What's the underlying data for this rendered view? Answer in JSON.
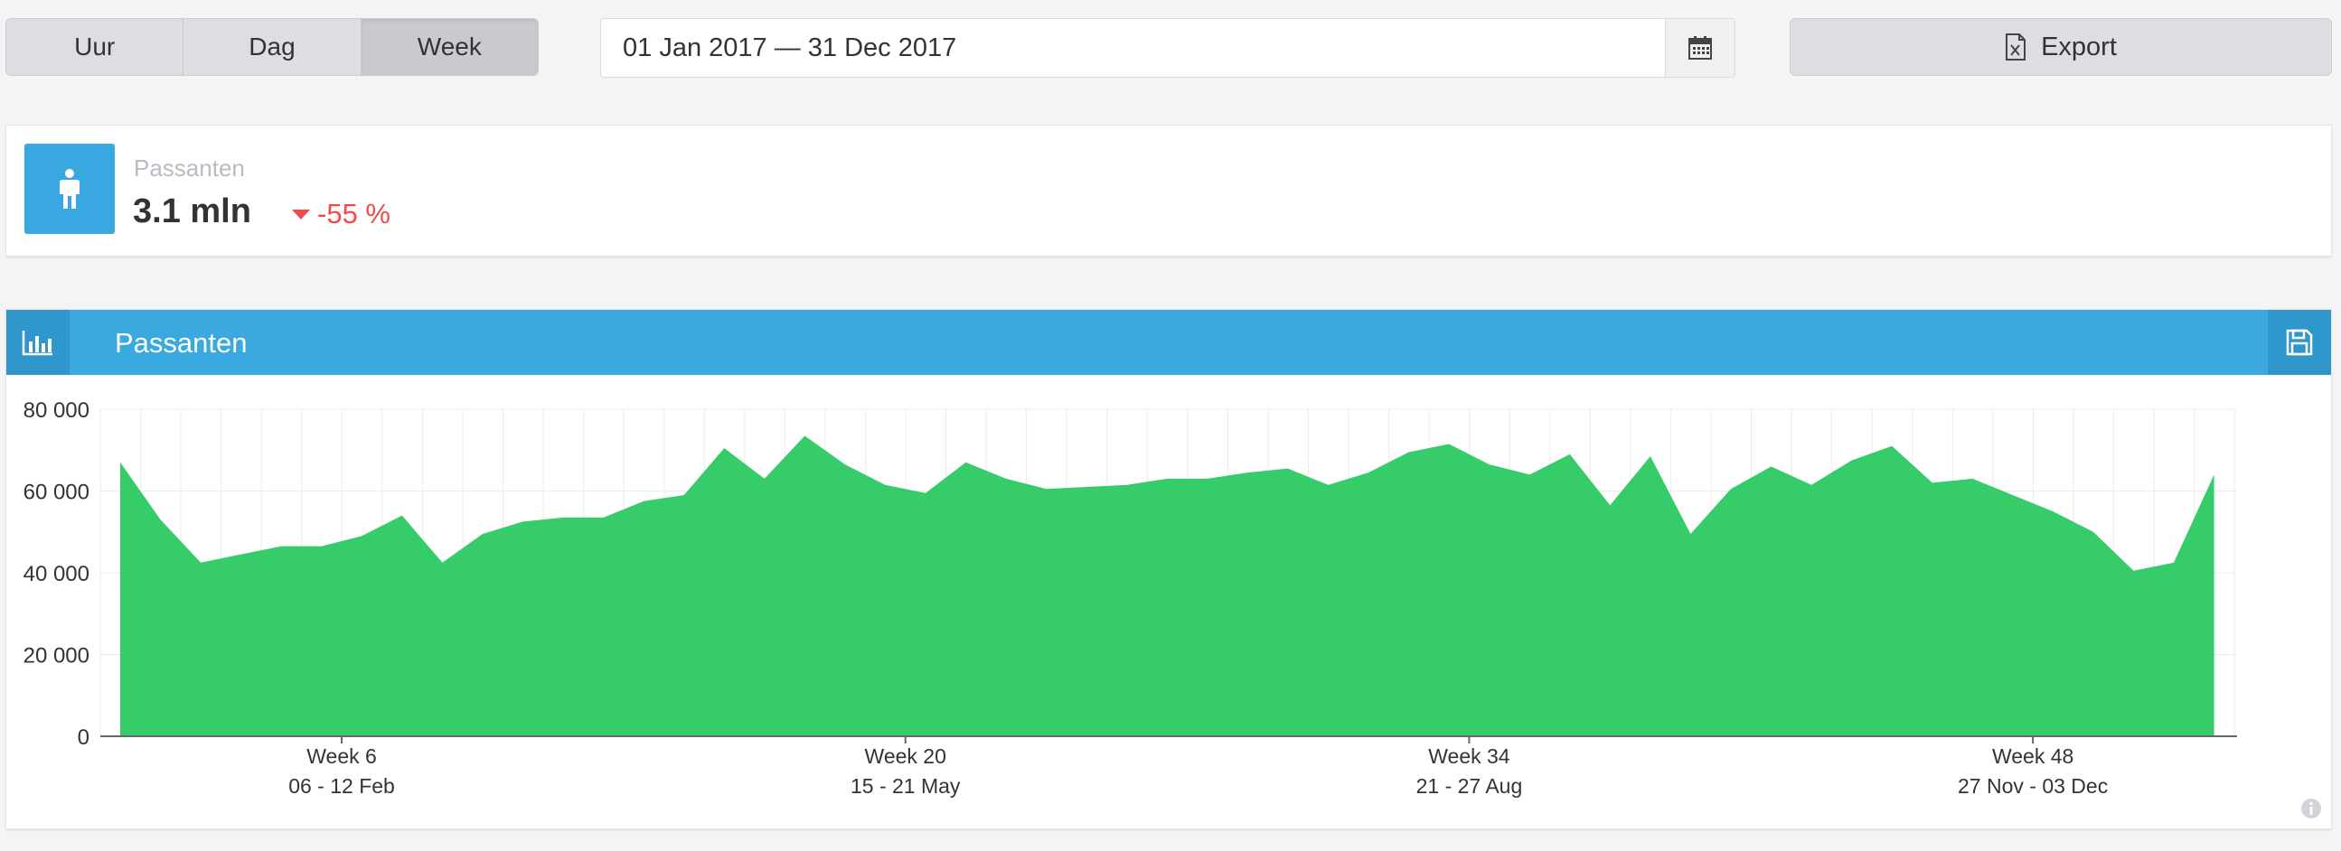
{
  "range_tabs": [
    {
      "label": "Uur",
      "active": false
    },
    {
      "label": "Dag",
      "active": false
    },
    {
      "label": "Week",
      "active": true
    }
  ],
  "date_range": {
    "value": "01 Jan 2017 — 31 Dec 2017"
  },
  "export": {
    "label": "Export"
  },
  "kpi": {
    "label": "Passanten",
    "value": "3.1 mln",
    "change": "-55 %",
    "change_color": "#f04b4b",
    "icon": "person-icon"
  },
  "panel": {
    "title": "Passanten",
    "header_color": "#39a9e0"
  },
  "chart_data": {
    "type": "area",
    "series": [
      {
        "color": "#36cc69",
        "values": [
          67000,
          53000,
          42500,
          44500,
          46500,
          46500,
          49000,
          54000,
          42500,
          49500,
          52500,
          53500,
          53500,
          57500,
          59000,
          70500,
          63000,
          73500,
          66500,
          61500,
          59500,
          67000,
          63000,
          60500,
          61000,
          61500,
          63000,
          63000,
          64500,
          65500,
          61500,
          64500,
          69500,
          71500,
          66500,
          64000,
          69000,
          56500,
          68500,
          49500,
          60500,
          66000,
          61500,
          67500,
          71000,
          62000,
          63000,
          59000,
          55000,
          50000,
          40500,
          42500,
          64000
        ]
      }
    ],
    "x_week_ticks": [
      {
        "week_index": 6,
        "label": "Week 6",
        "range": "06 - 12 Feb"
      },
      {
        "week_index": 20,
        "label": "Week 20",
        "range": "15 - 21 May"
      },
      {
        "week_index": 34,
        "label": "Week 34",
        "range": "21 - 27 Aug"
      },
      {
        "week_index": 48,
        "label": "Week 48",
        "range": "27 Nov - 03 Dec"
      }
    ],
    "ylim": [
      0,
      80000
    ],
    "yticks": [
      {
        "value": 0,
        "label": "0"
      },
      {
        "value": 20000,
        "label": "20 000"
      },
      {
        "value": 40000,
        "label": "40 000"
      },
      {
        "value": 60000,
        "label": "60 000"
      },
      {
        "value": 80000,
        "label": "80 000"
      }
    ],
    "grid": true
  }
}
